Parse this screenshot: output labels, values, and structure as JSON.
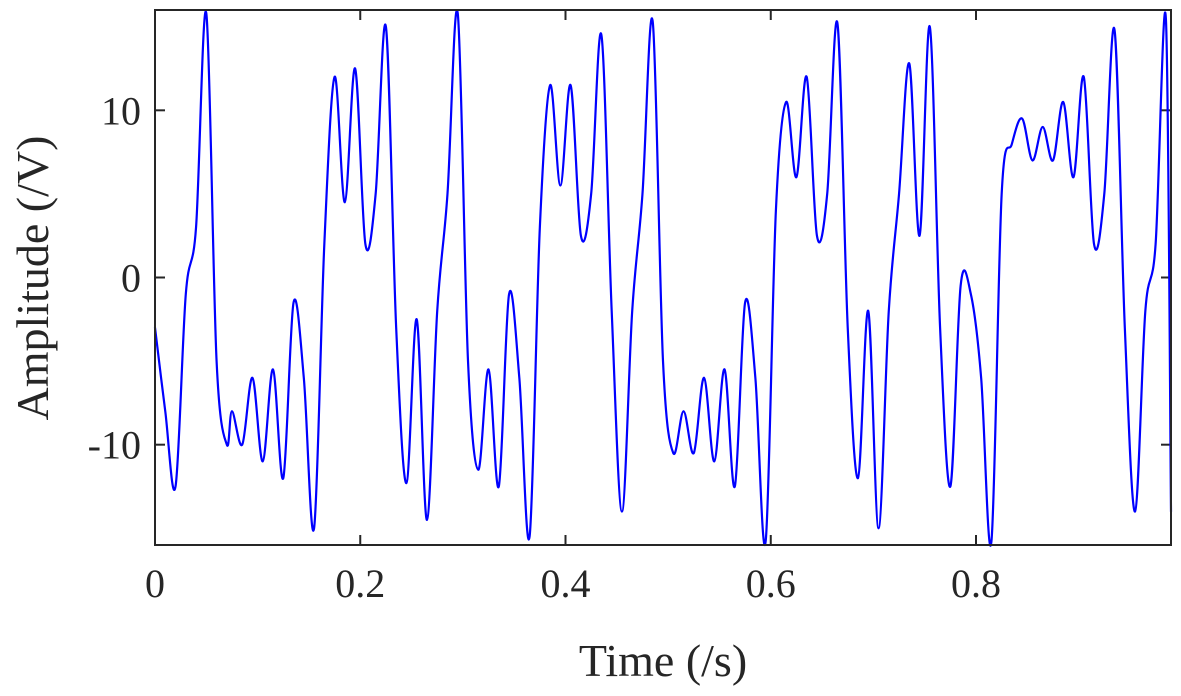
{
  "chart_data": {
    "type": "line",
    "title": "",
    "xlabel": "Time (/s)",
    "ylabel": "Amplitude (/V)",
    "xlim": [
      0,
      0.99
    ],
    "ylim": [
      -16,
      16
    ],
    "x_ticks": [
      0,
      0.2,
      0.4,
      0.6,
      0.8
    ],
    "x_tick_labels": [
      "0",
      "0.2",
      "0.4",
      "0.6",
      "0.8"
    ],
    "y_ticks": [
      10,
      0,
      -10
    ],
    "y_tick_labels": [
      "10",
      "0",
      "-10"
    ],
    "grid": false,
    "legend": "none",
    "colors": {
      "line": "#0000ff",
      "axes": "#262626",
      "background": "#ffffff"
    },
    "series": [
      {
        "x": [
          0,
          0.01,
          0.02,
          0.03,
          0.04,
          0.05,
          0.06,
          0.07,
          0.075,
          0.085,
          0.095,
          0.105,
          0.115,
          0.125,
          0.135,
          0.145,
          0.155,
          0.165,
          0.175,
          0.185,
          0.195,
          0.205,
          0.215,
          0.225,
          0.235,
          0.245,
          0.255,
          0.265,
          0.275,
          0.285,
          0.295,
          0.305,
          0.315,
          0.325,
          0.335,
          0.345,
          0.355,
          0.365,
          0.375,
          0.385,
          0.395,
          0.405,
          0.415,
          0.425,
          0.435,
          0.445,
          0.455,
          0.465,
          0.475,
          0.485,
          0.495,
          0.505,
          0.515,
          0.525,
          0.535,
          0.545,
          0.555,
          0.565,
          0.575,
          0.585,
          0.595,
          0.605,
          0.615,
          0.625,
          0.635,
          0.645,
          0.655,
          0.665,
          0.675,
          0.685,
          0.695,
          0.705,
          0.715,
          0.725,
          0.735,
          0.745,
          0.755,
          0.765,
          0.775,
          0.785,
          0.795,
          0.805,
          0.815,
          0.825,
          0.835,
          0.845,
          0.855,
          0.865,
          0.875,
          0.885,
          0.895,
          0.905,
          0.915,
          0.925,
          0.935,
          0.945,
          0.955,
          0.965,
          0.975,
          0.985,
          0.99
        ],
        "y": [
          -3,
          -8,
          -12.5,
          -1,
          3,
          15.8,
          -5,
          -10,
          -8,
          -10,
          -6,
          -11,
          -5.5,
          -12,
          -1.5,
          -6,
          -15,
          2,
          12,
          4.5,
          12.5,
          2,
          5,
          15,
          -3,
          -12.3,
          -2.5,
          -14.5,
          -2,
          5,
          15.8,
          -5,
          -11.5,
          -5.5,
          -12.5,
          -1,
          -6,
          -15.5,
          3,
          11.5,
          5.5,
          11.5,
          2.5,
          5,
          14.5,
          -2,
          -14,
          -2,
          5,
          15.3,
          -5,
          -10.5,
          -8,
          -10.5,
          -6,
          -11,
          -5.5,
          -12.5,
          -1.5,
          -6,
          -15.8,
          4,
          10.5,
          6,
          12,
          2.5,
          5,
          15.2,
          -3,
          -12,
          -2,
          -15,
          -2,
          5,
          12.8,
          2.5,
          15,
          -3,
          -12.5,
          -0.5,
          -1,
          -6,
          -15.8,
          5,
          8,
          9.5,
          7,
          9,
          7,
          10.5,
          6,
          12,
          2,
          5,
          14.8,
          -3,
          -14,
          -2,
          2,
          15.5,
          -14
        ]
      }
    ]
  }
}
